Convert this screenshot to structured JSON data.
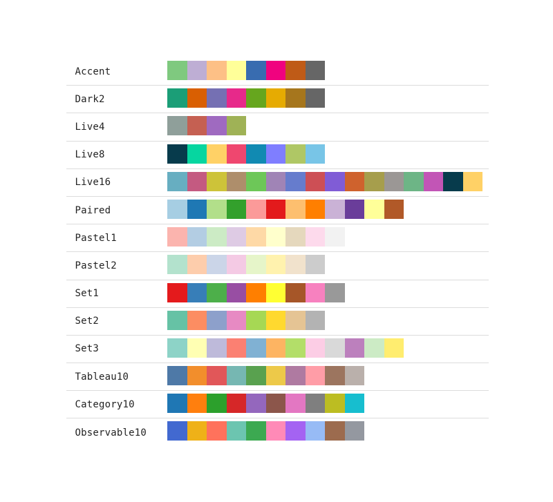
{
  "palettes": [
    {
      "name": "Accent",
      "colors": [
        "#7fc97f",
        "#beaed4",
        "#fdc086",
        "#ffff99",
        "#386cb0",
        "#f0027f",
        "#bf5b17",
        "#666666"
      ]
    },
    {
      "name": "Dark2",
      "colors": [
        "#1b9e77",
        "#d95f02",
        "#7570b3",
        "#e7298a",
        "#66a61e",
        "#e6ab02",
        "#a6761d",
        "#666666"
      ]
    },
    {
      "name": "Live4",
      "colors": [
        "#8f9f9a",
        "#c56052",
        "#9f6ac0",
        "#9fb256"
      ]
    },
    {
      "name": "Live8",
      "colors": [
        "#073b4c",
        "#06d6a0",
        "#ffd166",
        "#ef476f",
        "#118ab2",
        "#7f7eff",
        "#afc765",
        "#78c5e7"
      ]
    },
    {
      "name": "Live16",
      "colors": [
        "#67aec1",
        "#c45a81",
        "#cdc339",
        "#ae8e6b",
        "#6dc758",
        "#a084b6",
        "#667ccd",
        "#cd4f55",
        "#805cd6",
        "#cf622d",
        "#a69e4c",
        "#9b9795",
        "#6db586",
        "#c255b6",
        "#073b4c",
        "#ffd166"
      ]
    },
    {
      "name": "Paired",
      "colors": [
        "#a6cee3",
        "#1f78b4",
        "#b2df8a",
        "#33a02c",
        "#fb9a99",
        "#e31a1c",
        "#fdbf6f",
        "#ff7f00",
        "#cab2d6",
        "#6a3d9a",
        "#ffff99",
        "#b15928"
      ]
    },
    {
      "name": "Pastel1",
      "colors": [
        "#fbb4ae",
        "#b3cde3",
        "#ccebc5",
        "#decbe4",
        "#fed9a6",
        "#ffffcc",
        "#e5d8bd",
        "#fddaec",
        "#f2f2f2"
      ]
    },
    {
      "name": "Pastel2",
      "colors": [
        "#b3e2cd",
        "#fdcdac",
        "#cbd5e8",
        "#f4cae4",
        "#e6f5c9",
        "#fff2ae",
        "#f1e2cc",
        "#cccccc"
      ]
    },
    {
      "name": "Set1",
      "colors": [
        "#e41a1c",
        "#377eb8",
        "#4daf4a",
        "#984ea3",
        "#ff7f00",
        "#ffff33",
        "#a65628",
        "#f781bf",
        "#999999"
      ]
    },
    {
      "name": "Set2",
      "colors": [
        "#66c2a5",
        "#fc8d62",
        "#8da0cb",
        "#e78ac3",
        "#a6d854",
        "#ffd92f",
        "#e5c494",
        "#b3b3b3"
      ]
    },
    {
      "name": "Set3",
      "colors": [
        "#8dd3c7",
        "#ffffb3",
        "#bebada",
        "#fb8072",
        "#80b1d3",
        "#fdb462",
        "#b3de69",
        "#fccde5",
        "#d9d9d9",
        "#bc80bd",
        "#ccebc5",
        "#ffed6f"
      ]
    },
    {
      "name": "Tableau10",
      "colors": [
        "#4e79a7",
        "#f28e2c",
        "#e15759",
        "#76b7b2",
        "#59a14f",
        "#edc949",
        "#af7aa1",
        "#ff9da7",
        "#9c755f",
        "#bab0ab"
      ]
    },
    {
      "name": "Category10",
      "colors": [
        "#1f77b4",
        "#ff7f0e",
        "#2ca02c",
        "#d62728",
        "#9467bd",
        "#8c564b",
        "#e377c2",
        "#7f7f7f",
        "#bcbd22",
        "#17becf"
      ]
    },
    {
      "name": "Observable10",
      "colors": [
        "#4269d0",
        "#efb118",
        "#ff725c",
        "#6cc5b0",
        "#3ca951",
        "#ff8ab7",
        "#a463f2",
        "#97bbf5",
        "#9c6b4e",
        "#9498a0"
      ]
    }
  ]
}
